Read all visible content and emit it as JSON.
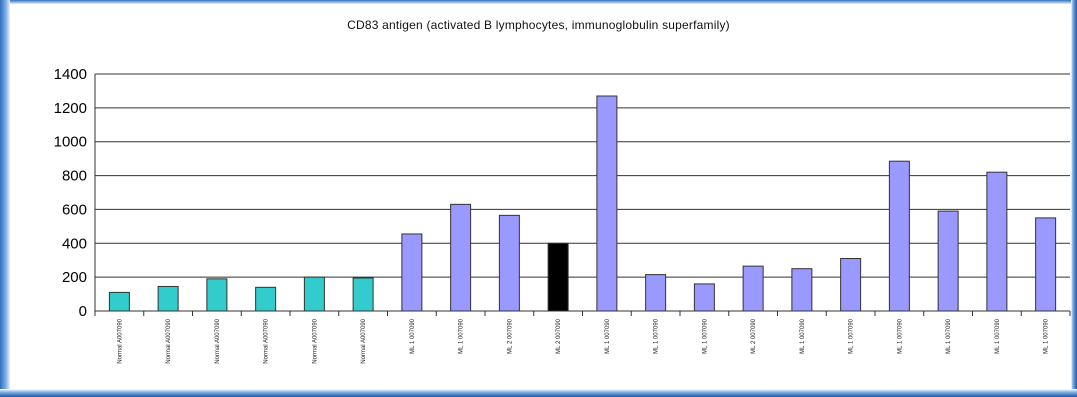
{
  "chart_data": {
    "type": "bar",
    "title": "CD83 antigen (activated B lymphocytes, immunoglobulin superfamily)",
    "xlabel": "",
    "ylabel": "",
    "ylim": [
      0,
      1400
    ],
    "yticks": [
      0,
      200,
      400,
      600,
      800,
      1000,
      1200,
      1400
    ],
    "grid": "horizontal",
    "legend": "none",
    "categories": [
      "Normal A007090",
      "Normal A007090",
      "Normal A007090",
      "Normal A007090",
      "Normal A007090",
      "Normal A007090",
      "ML 1 007090",
      "ML 1 007090",
      "ML 2 007090",
      "ML 2 007090",
      "ML 1 007090",
      "ML 1 007090",
      "ML 1 007090",
      "ML 2 007090",
      "ML 1 007090",
      "ML 1 007090",
      "ML 1 007090",
      "ML 1 007090",
      "ML 1 007090",
      "ML 1 007090"
    ],
    "values": [
      110,
      145,
      190,
      140,
      200,
      195,
      455,
      630,
      565,
      400,
      1270,
      215,
      160,
      265,
      250,
      310,
      885,
      590,
      820,
      550
    ],
    "bar_colors": [
      "#33cccc",
      "#33cccc",
      "#33cccc",
      "#33cccc",
      "#33cccc",
      "#33cccc",
      "#9999ff",
      "#9999ff",
      "#9999ff",
      "#000000",
      "#9999ff",
      "#9999ff",
      "#9999ff",
      "#9999ff",
      "#9999ff",
      "#9999ff",
      "#9999ff",
      "#9999ff",
      "#9999ff",
      "#9999ff"
    ],
    "bar_outline": "#333333",
    "gridline_color": "#333333"
  }
}
